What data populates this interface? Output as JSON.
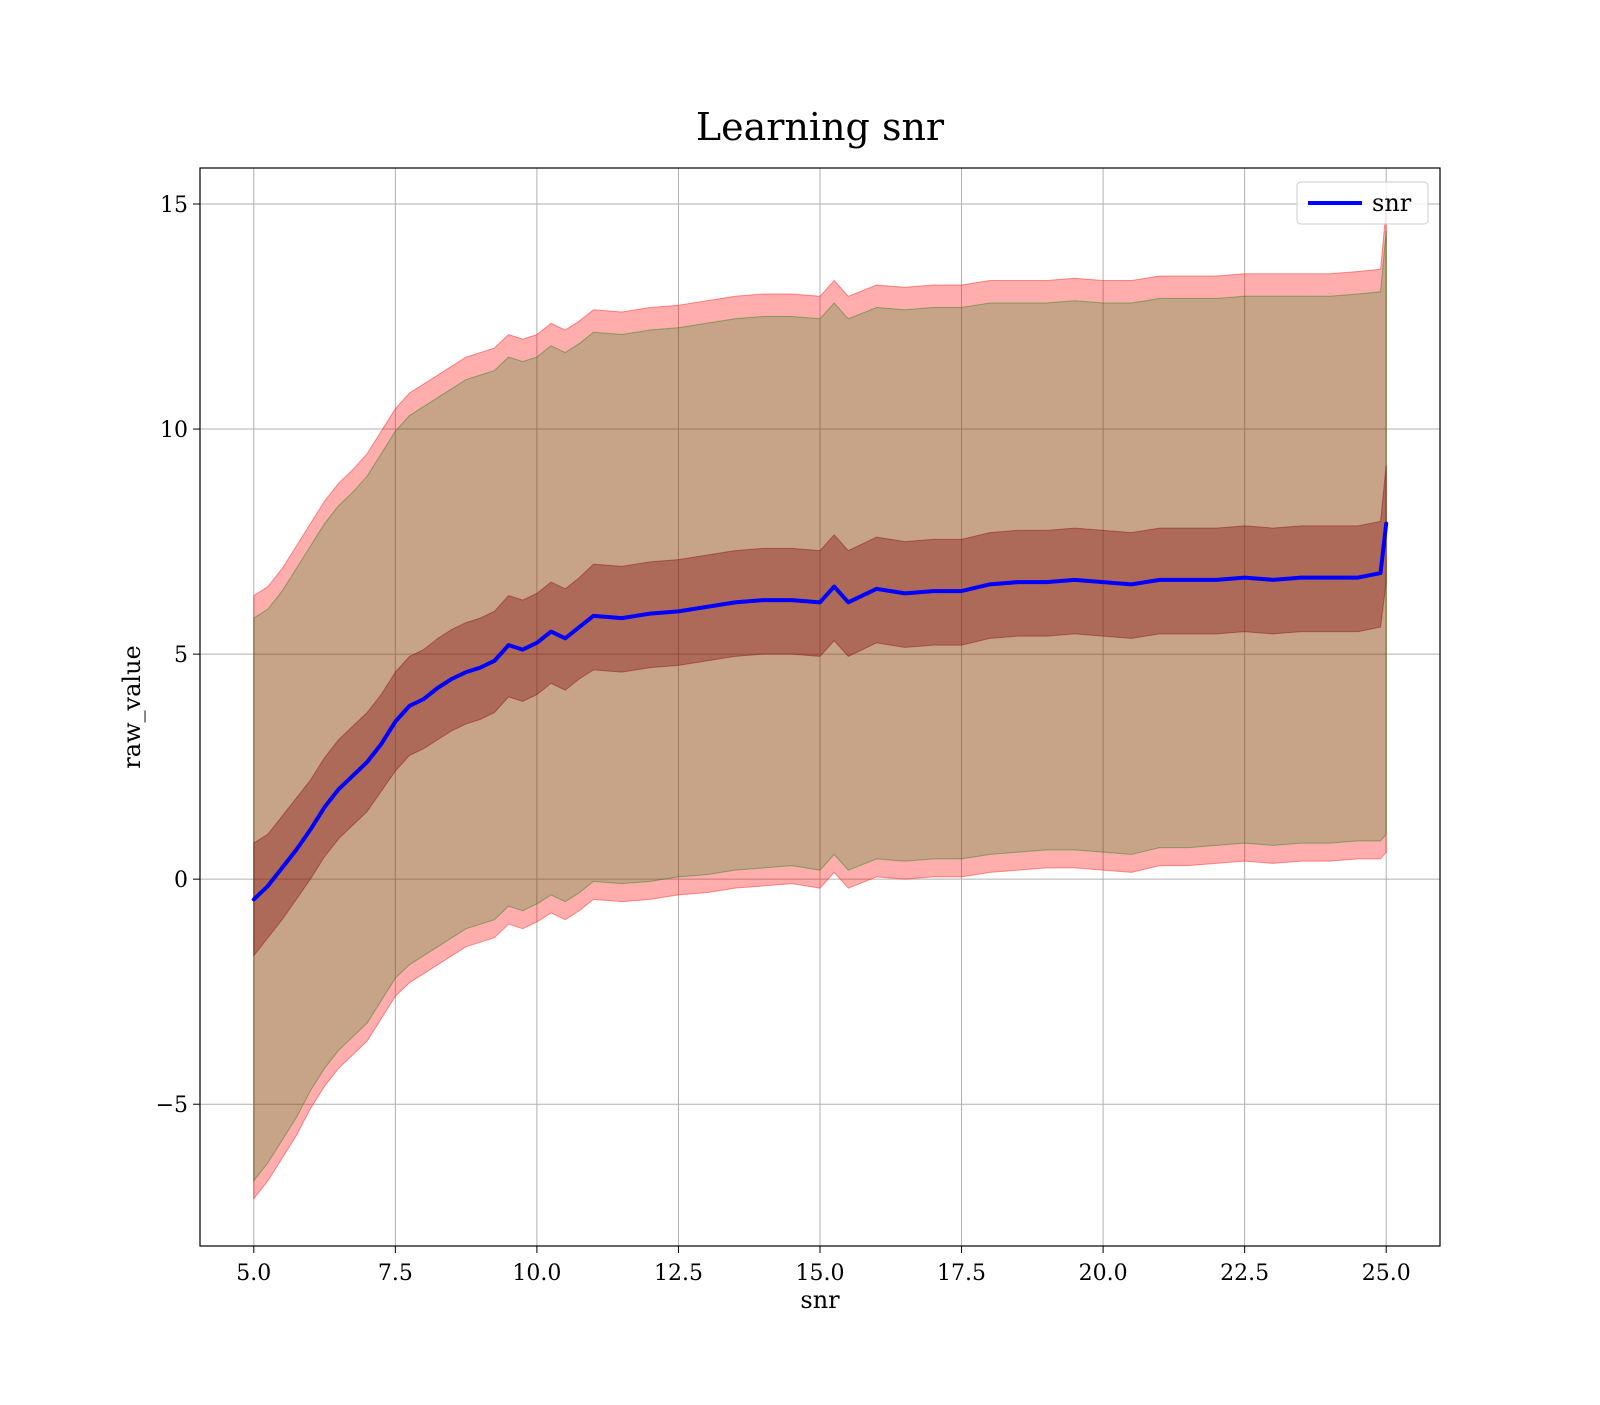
{
  "chart_data": {
    "type": "line",
    "title": "Learning snr",
    "xlabel": "snr",
    "ylabel": "raw_value",
    "xlim": [
      4.05,
      25.95
    ],
    "ylim": [
      -8.15,
      15.8
    ],
    "xticks": [
      5.0,
      7.5,
      10.0,
      12.5,
      15.0,
      17.5,
      20.0,
      22.5,
      25.0
    ],
    "xtick_labels": [
      "5.0",
      "7.5",
      "10.0",
      "12.5",
      "15.0",
      "17.5",
      "20.0",
      "22.5",
      "25.0"
    ],
    "yticks": [
      -5,
      0,
      5,
      10,
      15
    ],
    "ytick_labels": [
      "−5",
      "0",
      "5",
      "10",
      "15"
    ],
    "grid": true,
    "legend": {
      "position": "top-right",
      "entries": [
        "snr"
      ]
    },
    "colors": {
      "line": "#0000ff",
      "outer_band": "#ff0000",
      "inner_band": "#800000",
      "std_band": "#008000",
      "grid": "#b0b0b0"
    },
    "x": [
      5.0,
      5.25,
      5.5,
      5.75,
      6.0,
      6.25,
      6.5,
      6.75,
      7.0,
      7.25,
      7.5,
      7.75,
      8.0,
      8.25,
      8.5,
      8.75,
      9.0,
      9.25,
      9.5,
      9.75,
      10.0,
      10.25,
      10.5,
      10.75,
      11.0,
      11.5,
      12.0,
      12.5,
      13.0,
      13.5,
      14.0,
      14.5,
      15.0,
      15.25,
      15.5,
      16.0,
      16.5,
      17.0,
      17.5,
      18.0,
      18.5,
      19.0,
      19.5,
      20.0,
      20.5,
      21.0,
      21.5,
      22.0,
      22.5,
      23.0,
      23.5,
      24.0,
      24.5,
      24.9,
      25.0
    ],
    "series": [
      {
        "name": "snr",
        "values": [
          -0.45,
          -0.15,
          0.25,
          0.65,
          1.1,
          1.6,
          2.0,
          2.3,
          2.6,
          3.0,
          3.5,
          3.85,
          4.0,
          4.25,
          4.45,
          4.6,
          4.7,
          4.85,
          5.2,
          5.1,
          5.25,
          5.5,
          5.35,
          5.6,
          5.85,
          5.8,
          5.9,
          5.95,
          6.05,
          6.15,
          6.2,
          6.2,
          6.15,
          6.5,
          6.15,
          6.45,
          6.35,
          6.4,
          6.4,
          6.55,
          6.6,
          6.6,
          6.65,
          6.6,
          6.55,
          6.65,
          6.65,
          6.65,
          6.7,
          6.65,
          6.7,
          6.7,
          6.7,
          6.8,
          7.9
        ]
      }
    ],
    "bands": [
      {
        "role": "min-max",
        "lower": [
          -7.1,
          -6.7,
          -6.2,
          -5.7,
          -5.1,
          -4.6,
          -4.2,
          -3.9,
          -3.6,
          -3.1,
          -2.6,
          -2.3,
          -2.1,
          -1.9,
          -1.7,
          -1.5,
          -1.4,
          -1.3,
          -1.0,
          -1.1,
          -0.95,
          -0.75,
          -0.9,
          -0.7,
          -0.45,
          -0.5,
          -0.45,
          -0.35,
          -0.3,
          -0.2,
          -0.15,
          -0.1,
          -0.2,
          0.15,
          -0.2,
          0.05,
          0.0,
          0.05,
          0.05,
          0.15,
          0.2,
          0.25,
          0.25,
          0.2,
          0.15,
          0.3,
          0.3,
          0.35,
          0.4,
          0.35,
          0.4,
          0.4,
          0.45,
          0.45,
          0.6
        ],
        "upper": [
          6.3,
          6.5,
          6.9,
          7.4,
          7.9,
          8.4,
          8.8,
          9.1,
          9.45,
          9.95,
          10.45,
          10.8,
          11.0,
          11.2,
          11.4,
          11.6,
          11.7,
          11.8,
          12.1,
          12.0,
          12.1,
          12.35,
          12.2,
          12.4,
          12.65,
          12.6,
          12.7,
          12.75,
          12.85,
          12.95,
          13.0,
          13.0,
          12.95,
          13.3,
          12.95,
          13.2,
          13.15,
          13.2,
          13.2,
          13.3,
          13.3,
          13.3,
          13.35,
          13.3,
          13.3,
          13.4,
          13.4,
          13.4,
          13.45,
          13.45,
          13.45,
          13.45,
          13.5,
          13.55,
          14.9
        ]
      },
      {
        "role": "mean ± 2 std",
        "lower": [
          -6.7,
          -6.3,
          -5.8,
          -5.3,
          -4.7,
          -4.2,
          -3.8,
          -3.5,
          -3.2,
          -2.7,
          -2.2,
          -1.9,
          -1.7,
          -1.5,
          -1.3,
          -1.1,
          -1.0,
          -0.9,
          -0.6,
          -0.7,
          -0.55,
          -0.35,
          -0.5,
          -0.3,
          -0.05,
          -0.1,
          -0.05,
          0.05,
          0.1,
          0.2,
          0.25,
          0.3,
          0.2,
          0.55,
          0.2,
          0.45,
          0.4,
          0.45,
          0.45,
          0.55,
          0.6,
          0.65,
          0.65,
          0.6,
          0.55,
          0.7,
          0.7,
          0.75,
          0.8,
          0.75,
          0.8,
          0.8,
          0.85,
          0.85,
          1.0
        ],
        "upper": [
          5.8,
          6.0,
          6.4,
          6.9,
          7.4,
          7.9,
          8.3,
          8.6,
          8.95,
          9.45,
          9.95,
          10.3,
          10.5,
          10.7,
          10.9,
          11.1,
          11.2,
          11.3,
          11.6,
          11.5,
          11.6,
          11.85,
          11.7,
          11.9,
          12.15,
          12.1,
          12.2,
          12.25,
          12.35,
          12.45,
          12.5,
          12.5,
          12.45,
          12.8,
          12.45,
          12.7,
          12.65,
          12.7,
          12.7,
          12.8,
          12.8,
          12.8,
          12.85,
          12.8,
          12.8,
          12.9,
          12.9,
          12.9,
          12.95,
          12.95,
          12.95,
          12.95,
          13.0,
          13.05,
          14.4
        ]
      },
      {
        "role": "mean ± std",
        "lower": [
          -1.7,
          -1.3,
          -0.9,
          -0.45,
          0.0,
          0.5,
          0.9,
          1.2,
          1.5,
          1.95,
          2.4,
          2.75,
          2.9,
          3.1,
          3.3,
          3.45,
          3.55,
          3.7,
          4.05,
          3.95,
          4.1,
          4.35,
          4.2,
          4.45,
          4.65,
          4.6,
          4.7,
          4.75,
          4.85,
          4.95,
          5.0,
          5.0,
          4.95,
          5.3,
          4.95,
          5.25,
          5.15,
          5.2,
          5.2,
          5.35,
          5.4,
          5.4,
          5.45,
          5.4,
          5.35,
          5.45,
          5.45,
          5.45,
          5.5,
          5.45,
          5.5,
          5.5,
          5.5,
          5.6,
          6.6
        ],
        "upper": [
          0.8,
          1.0,
          1.4,
          1.8,
          2.2,
          2.7,
          3.1,
          3.4,
          3.7,
          4.1,
          4.6,
          4.95,
          5.1,
          5.35,
          5.55,
          5.7,
          5.8,
          5.95,
          6.3,
          6.2,
          6.35,
          6.6,
          6.45,
          6.7,
          7.0,
          6.95,
          7.05,
          7.1,
          7.2,
          7.3,
          7.35,
          7.35,
          7.3,
          7.65,
          7.3,
          7.6,
          7.5,
          7.55,
          7.55,
          7.7,
          7.75,
          7.75,
          7.8,
          7.75,
          7.7,
          7.8,
          7.8,
          7.8,
          7.85,
          7.8,
          7.85,
          7.85,
          7.85,
          7.95,
          9.2
        ]
      }
    ]
  }
}
